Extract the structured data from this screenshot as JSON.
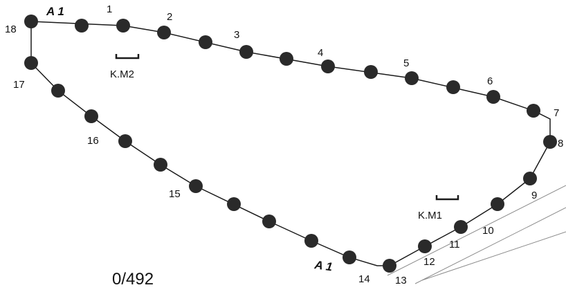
{
  "plot_id": "0/492",
  "parcel_markers": [
    "A 1",
    "A 1"
  ],
  "benchmarks": [
    "K.M2",
    "K.M1"
  ],
  "vertex_labels": [
    "1",
    "2",
    "3",
    "4",
    "5",
    "6",
    "7",
    "8",
    "9",
    "10",
    "11",
    "12",
    "13",
    "14",
    "15",
    "16",
    "17",
    "18"
  ],
  "colors": {
    "ink": "#1a1a1a",
    "node": "#2a2a2a"
  }
}
